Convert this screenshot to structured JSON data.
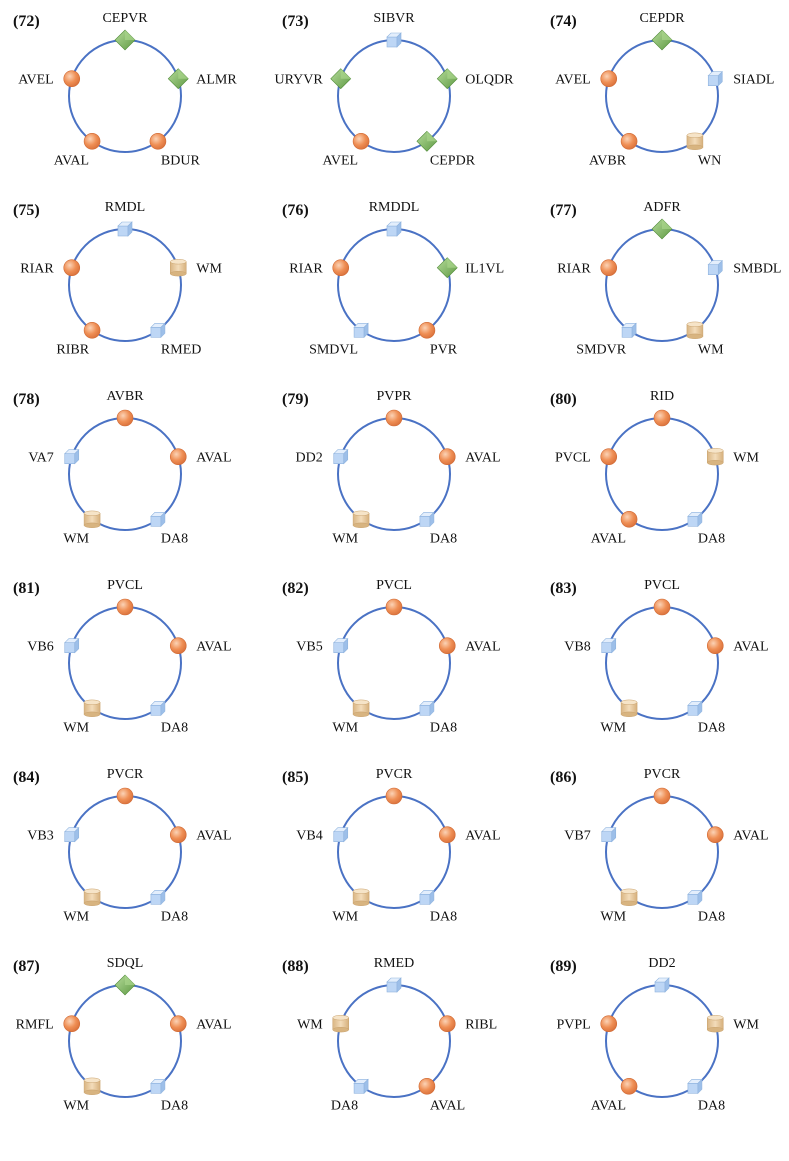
{
  "colors": {
    "ring": "#4a72c4",
    "circle_node": "#ef8f55",
    "diamond_node": "#78b25a",
    "cube_node": "#bdd6f5",
    "cylinder_node": "#e6c79b"
  },
  "motifs": [
    {
      "id": "(72)",
      "nodes": [
        {
          "label": "CEPVR",
          "shape": "diamond"
        },
        {
          "label": "ALMR",
          "shape": "diamond"
        },
        {
          "label": "BDUR",
          "shape": "circle"
        },
        {
          "label": "AVAL",
          "shape": "circle"
        },
        {
          "label": "AVEL",
          "shape": "circle"
        }
      ]
    },
    {
      "id": "(73)",
      "nodes": [
        {
          "label": "SIBVR",
          "shape": "cube"
        },
        {
          "label": "OLQDR",
          "shape": "diamond"
        },
        {
          "label": "CEPDR",
          "shape": "diamond"
        },
        {
          "label": "AVEL",
          "shape": "circle"
        },
        {
          "label": "URYVR",
          "shape": "diamond"
        }
      ]
    },
    {
      "id": "(74)",
      "nodes": [
        {
          "label": "CEPDR",
          "shape": "diamond"
        },
        {
          "label": "SIADL",
          "shape": "cube"
        },
        {
          "label": "WN",
          "shape": "cylinder"
        },
        {
          "label": "AVBR",
          "shape": "circle"
        },
        {
          "label": "AVEL",
          "shape": "circle"
        }
      ]
    },
    {
      "id": "(75)",
      "nodes": [
        {
          "label": "RMDL",
          "shape": "cube"
        },
        {
          "label": "WM",
          "shape": "cylinder"
        },
        {
          "label": "RMED",
          "shape": "cube"
        },
        {
          "label": "RIBR",
          "shape": "circle"
        },
        {
          "label": "RIAR",
          "shape": "circle"
        }
      ]
    },
    {
      "id": "(76)",
      "nodes": [
        {
          "label": "RMDDL",
          "shape": "cube"
        },
        {
          "label": "IL1VL",
          "shape": "diamond"
        },
        {
          "label": "PVR",
          "shape": "circle"
        },
        {
          "label": "SMDVL",
          "shape": "cube"
        },
        {
          "label": "RIAR",
          "shape": "circle"
        }
      ]
    },
    {
      "id": "(77)",
      "nodes": [
        {
          "label": "ADFR",
          "shape": "diamond"
        },
        {
          "label": "SMBDL",
          "shape": "cube"
        },
        {
          "label": "WM",
          "shape": "cylinder"
        },
        {
          "label": "SMDVR",
          "shape": "cube"
        },
        {
          "label": "RIAR",
          "shape": "circle"
        }
      ]
    },
    {
      "id": "(78)",
      "nodes": [
        {
          "label": "AVBR",
          "shape": "circle"
        },
        {
          "label": "AVAL",
          "shape": "circle"
        },
        {
          "label": "DA8",
          "shape": "cube"
        },
        {
          "label": "WM",
          "shape": "cylinder"
        },
        {
          "label": "VA7",
          "shape": "cube"
        }
      ]
    },
    {
      "id": "(79)",
      "nodes": [
        {
          "label": "PVPR",
          "shape": "circle"
        },
        {
          "label": "AVAL",
          "shape": "circle"
        },
        {
          "label": "DA8",
          "shape": "cube"
        },
        {
          "label": "WM",
          "shape": "cylinder"
        },
        {
          "label": "DD2",
          "shape": "cube"
        }
      ]
    },
    {
      "id": "(80)",
      "nodes": [
        {
          "label": "RID",
          "shape": "circle"
        },
        {
          "label": "WM",
          "shape": "cylinder"
        },
        {
          "label": "DA8",
          "shape": "cube"
        },
        {
          "label": "AVAL",
          "shape": "circle"
        },
        {
          "label": "PVCL",
          "shape": "circle"
        }
      ]
    },
    {
      "id": "(81)",
      "nodes": [
        {
          "label": "PVCL",
          "shape": "circle"
        },
        {
          "label": "AVAL",
          "shape": "circle"
        },
        {
          "label": "DA8",
          "shape": "cube"
        },
        {
          "label": "WM",
          "shape": "cylinder"
        },
        {
          "label": "VB6",
          "shape": "cube"
        }
      ]
    },
    {
      "id": "(82)",
      "nodes": [
        {
          "label": "PVCL",
          "shape": "circle"
        },
        {
          "label": "AVAL",
          "shape": "circle"
        },
        {
          "label": "DA8",
          "shape": "cube"
        },
        {
          "label": "WM",
          "shape": "cylinder"
        },
        {
          "label": "VB5",
          "shape": "cube"
        }
      ]
    },
    {
      "id": "(83)",
      "nodes": [
        {
          "label": "PVCL",
          "shape": "circle"
        },
        {
          "label": "AVAL",
          "shape": "circle"
        },
        {
          "label": "DA8",
          "shape": "cube"
        },
        {
          "label": "WM",
          "shape": "cylinder"
        },
        {
          "label": "VB8",
          "shape": "cube"
        }
      ]
    },
    {
      "id": "(84)",
      "nodes": [
        {
          "label": "PVCR",
          "shape": "circle"
        },
        {
          "label": "AVAL",
          "shape": "circle"
        },
        {
          "label": "DA8",
          "shape": "cube"
        },
        {
          "label": "WM",
          "shape": "cylinder"
        },
        {
          "label": "VB3",
          "shape": "cube"
        }
      ]
    },
    {
      "id": "(85)",
      "nodes": [
        {
          "label": "PVCR",
          "shape": "circle"
        },
        {
          "label": "AVAL",
          "shape": "circle"
        },
        {
          "label": "DA8",
          "shape": "cube"
        },
        {
          "label": "WM",
          "shape": "cylinder"
        },
        {
          "label": "VB4",
          "shape": "cube"
        }
      ]
    },
    {
      "id": "(86)",
      "nodes": [
        {
          "label": "PVCR",
          "shape": "circle"
        },
        {
          "label": "AVAL",
          "shape": "circle"
        },
        {
          "label": "DA8",
          "shape": "cube"
        },
        {
          "label": "WM",
          "shape": "cylinder"
        },
        {
          "label": "VB7",
          "shape": "cube"
        }
      ]
    },
    {
      "id": "(87)",
      "nodes": [
        {
          "label": "SDQL",
          "shape": "diamond"
        },
        {
          "label": "AVAL",
          "shape": "circle"
        },
        {
          "label": "DA8",
          "shape": "cube"
        },
        {
          "label": "WM",
          "shape": "cylinder"
        },
        {
          "label": "RMFL",
          "shape": "circle"
        }
      ]
    },
    {
      "id": "(88)",
      "nodes": [
        {
          "label": "RMED",
          "shape": "cube"
        },
        {
          "label": "RIBL",
          "shape": "circle"
        },
        {
          "label": "AVAL",
          "shape": "circle"
        },
        {
          "label": "DA8",
          "shape": "cube"
        },
        {
          "label": "WM",
          "shape": "cylinder"
        }
      ]
    },
    {
      "id": "(89)",
      "nodes": [
        {
          "label": "DD2",
          "shape": "cube"
        },
        {
          "label": "WM",
          "shape": "cylinder"
        },
        {
          "label": "DA8",
          "shape": "cube"
        },
        {
          "label": "AVAL",
          "shape": "circle"
        },
        {
          "label": "PVPL",
          "shape": "circle"
        }
      ]
    }
  ]
}
